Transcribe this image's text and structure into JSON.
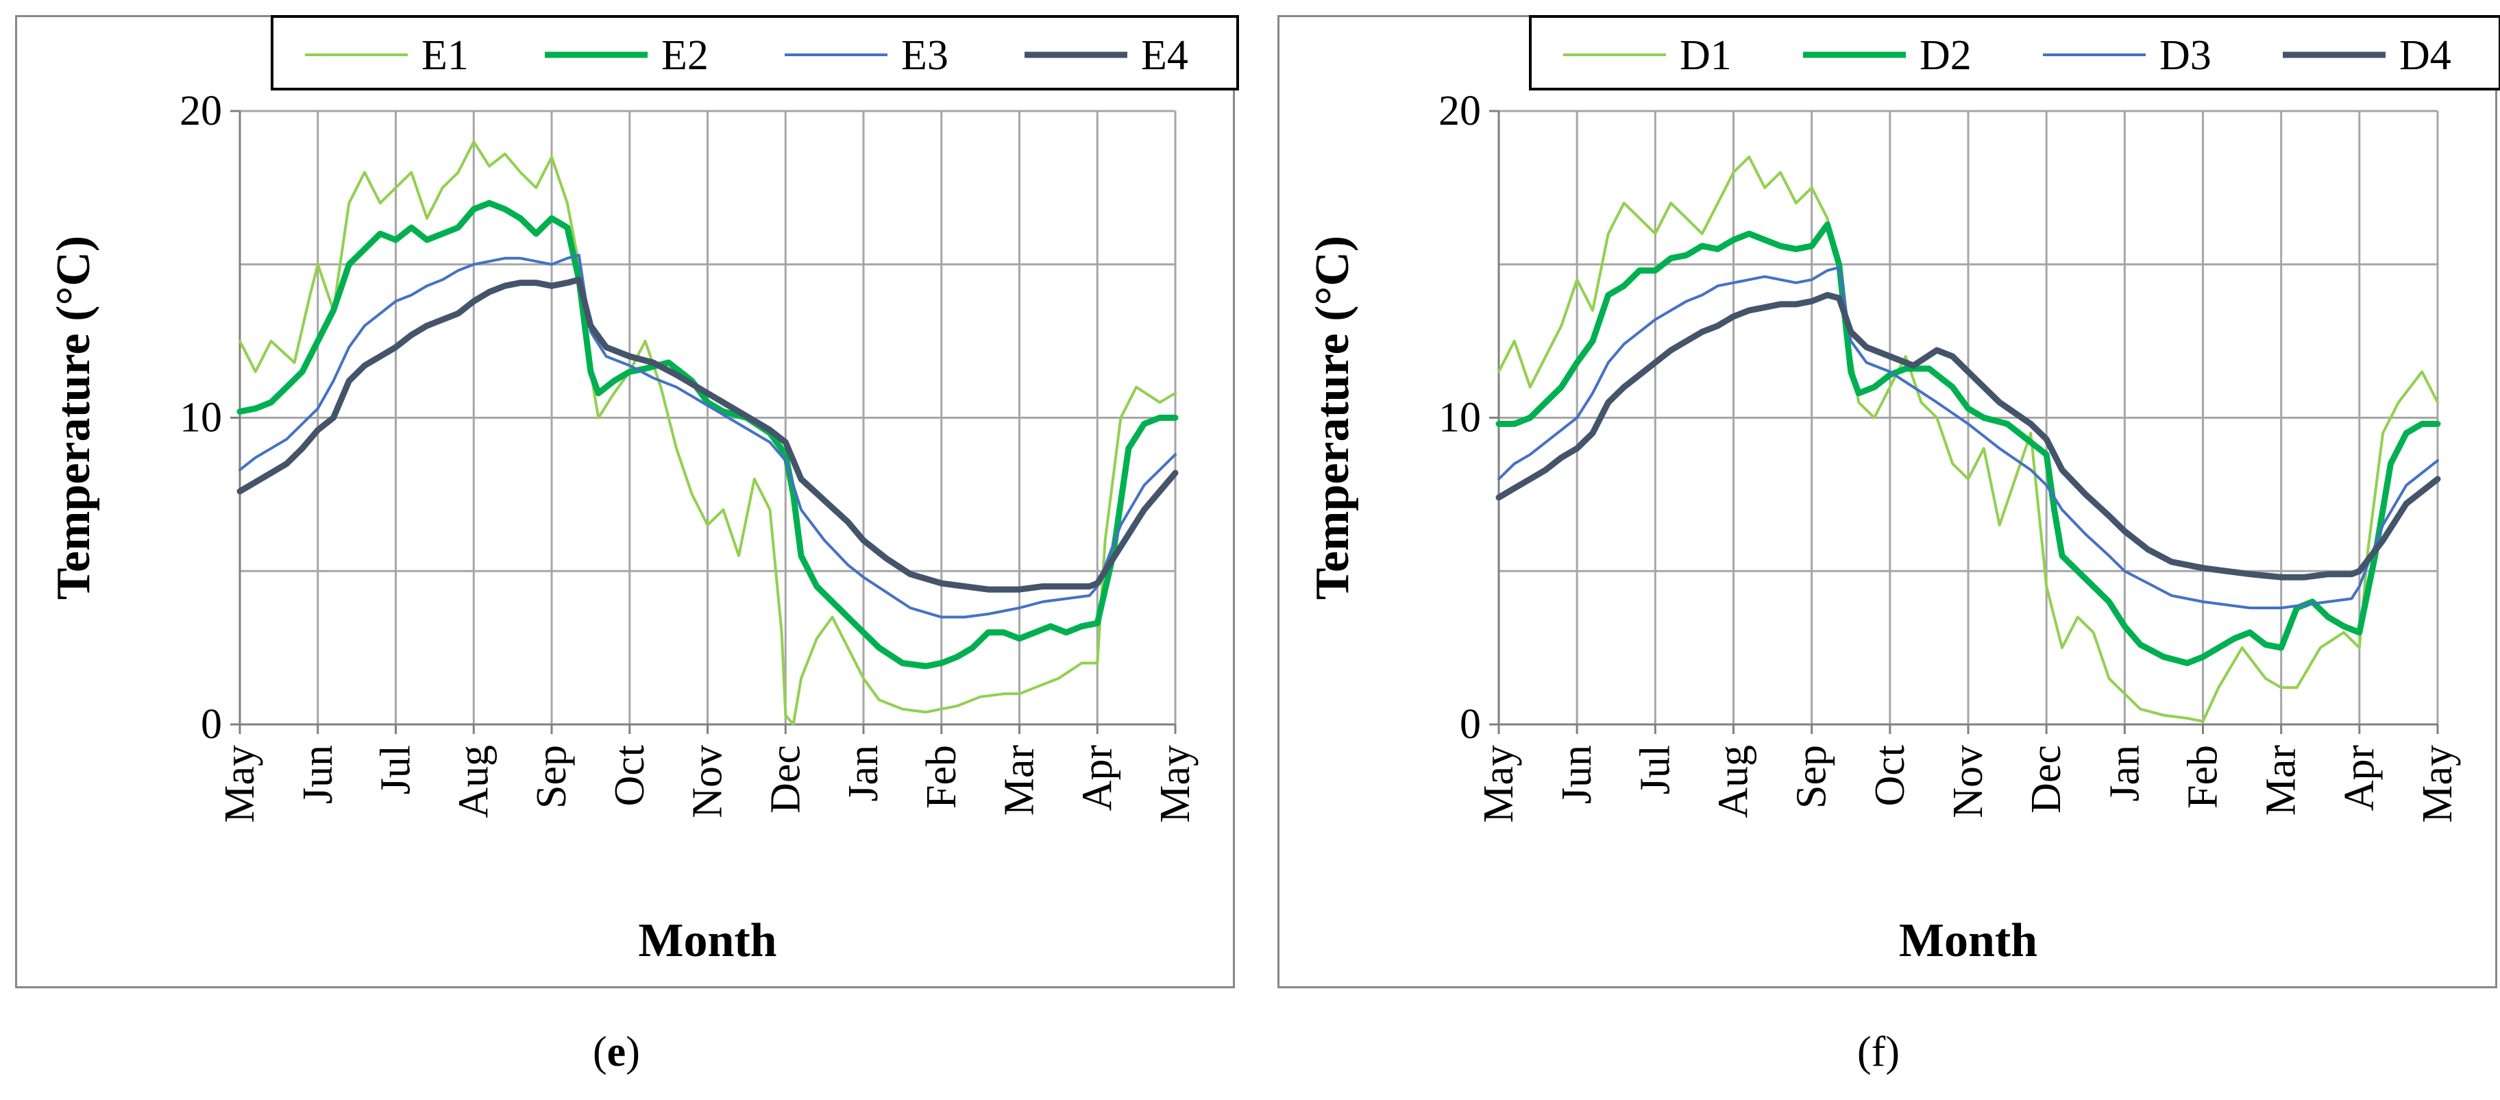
{
  "chart_data": [
    {
      "type": "line",
      "panel": "e",
      "caption_open": "(",
      "caption_letter": "e",
      "caption_close": ")",
      "xlabel": "Month",
      "ylabel": "Temperature (°C)",
      "ylim": [
        0,
        20
      ],
      "yticks": [
        0,
        10,
        20
      ],
      "categories": [
        "May",
        "Jun",
        "Jul",
        "Aug",
        "Sep",
        "Oct",
        "Nov",
        "Dec",
        "Jan",
        "Feb",
        "Mar",
        "Apr",
        "May"
      ],
      "gridlines": [
        5,
        10,
        15,
        20
      ],
      "legend_position": "top",
      "series": [
        {
          "name": "E1",
          "color": "#92d050",
          "width": "thin",
          "x": [
            0,
            0.2,
            0.4,
            0.7,
            0.9,
            1.0,
            1.2,
            1.4,
            1.6,
            1.8,
            2.0,
            2.2,
            2.4,
            2.6,
            2.8,
            3.0,
            3.2,
            3.4,
            3.6,
            3.8,
            4.0,
            4.2,
            4.35,
            4.5,
            4.6,
            4.8,
            5.0,
            5.2,
            5.4,
            5.6,
            5.8,
            6.0,
            6.2,
            6.4,
            6.6,
            6.8,
            6.95,
            7.0,
            7.1,
            7.2,
            7.4,
            7.6,
            7.8,
            8.0,
            8.2,
            8.5,
            8.8,
            9.0,
            9.2,
            9.5,
            9.8,
            10.0,
            10.2,
            10.5,
            10.8,
            11.0,
            11.1,
            11.3,
            11.5,
            11.8,
            12.0
          ],
          "y": [
            12.5,
            11.5,
            12.5,
            11.8,
            14.0,
            15.0,
            13.5,
            17.0,
            18.0,
            17.0,
            17.5,
            18.0,
            16.5,
            17.5,
            18.0,
            19.0,
            18.2,
            18.6,
            18.0,
            17.5,
            18.5,
            17.0,
            15.0,
            11.5,
            10.0,
            10.8,
            11.5,
            12.5,
            11.0,
            9.0,
            7.5,
            6.5,
            7.0,
            5.5,
            8.0,
            7.0,
            3.0,
            0.3,
            0.0,
            1.5,
            2.8,
            3.5,
            2.5,
            1.5,
            0.8,
            0.5,
            0.4,
            0.5,
            0.6,
            0.9,
            1.0,
            1.0,
            1.2,
            1.5,
            2.0,
            2.0,
            6.0,
            10.0,
            11.0,
            10.5,
            10.8
          ]
        },
        {
          "name": "E2",
          "color": "#00b050",
          "width": "thick",
          "x": [
            0,
            0.2,
            0.4,
            0.6,
            0.8,
            1.0,
            1.2,
            1.4,
            1.6,
            1.8,
            2.0,
            2.2,
            2.4,
            2.6,
            2.8,
            3.0,
            3.2,
            3.4,
            3.6,
            3.8,
            4.0,
            4.2,
            4.35,
            4.5,
            4.6,
            4.8,
            5.0,
            5.2,
            5.5,
            5.8,
            6.0,
            6.2,
            6.5,
            6.8,
            7.0,
            7.1,
            7.2,
            7.4,
            7.6,
            7.8,
            8.0,
            8.2,
            8.5,
            8.8,
            9.0,
            9.2,
            9.4,
            9.6,
            9.8,
            10.0,
            10.2,
            10.4,
            10.6,
            10.8,
            11.0,
            11.2,
            11.4,
            11.6,
            11.8,
            12.0
          ],
          "y": [
            10.2,
            10.3,
            10.5,
            11.0,
            11.5,
            12.5,
            13.5,
            15.0,
            15.5,
            16.0,
            15.8,
            16.2,
            15.8,
            16.0,
            16.2,
            16.8,
            17.0,
            16.8,
            16.5,
            16.0,
            16.5,
            16.2,
            14.5,
            11.5,
            10.8,
            11.2,
            11.5,
            11.6,
            11.8,
            11.2,
            10.5,
            10.2,
            10.0,
            9.5,
            8.8,
            7.5,
            5.5,
            4.5,
            4.0,
            3.5,
            3.0,
            2.5,
            2.0,
            1.9,
            2.0,
            2.2,
            2.5,
            3.0,
            3.0,
            2.8,
            3.0,
            3.2,
            3.0,
            3.2,
            3.3,
            5.5,
            9.0,
            9.8,
            10.0,
            10.0
          ]
        },
        {
          "name": "E3",
          "color": "#4472c4",
          "width": "thin",
          "x": [
            0,
            0.2,
            0.4,
            0.6,
            0.8,
            1.0,
            1.2,
            1.4,
            1.6,
            1.8,
            2.0,
            2.2,
            2.4,
            2.6,
            2.8,
            3.0,
            3.2,
            3.4,
            3.6,
            3.8,
            4.0,
            4.2,
            4.35,
            4.5,
            4.7,
            5.0,
            5.3,
            5.6,
            6.0,
            6.4,
            6.8,
            7.0,
            7.2,
            7.5,
            7.8,
            8.0,
            8.3,
            8.6,
            9.0,
            9.3,
            9.6,
            10.0,
            10.3,
            10.6,
            10.9,
            11.0,
            11.3,
            11.6,
            12.0
          ],
          "y": [
            8.3,
            8.7,
            9.0,
            9.3,
            9.8,
            10.3,
            11.2,
            12.3,
            13.0,
            13.4,
            13.8,
            14.0,
            14.3,
            14.5,
            14.8,
            15.0,
            15.1,
            15.2,
            15.2,
            15.1,
            15.0,
            15.2,
            15.3,
            12.8,
            12.0,
            11.7,
            11.3,
            11.0,
            10.4,
            9.8,
            9.2,
            8.6,
            7.0,
            6.0,
            5.2,
            4.8,
            4.3,
            3.8,
            3.5,
            3.5,
            3.6,
            3.8,
            4.0,
            4.1,
            4.2,
            4.5,
            6.5,
            7.8,
            8.8
          ]
        },
        {
          "name": "E4",
          "color": "#44546a",
          "width": "thick",
          "x": [
            0,
            0.2,
            0.4,
            0.6,
            0.8,
            1.0,
            1.2,
            1.4,
            1.6,
            1.8,
            2.0,
            2.2,
            2.4,
            2.6,
            2.8,
            3.0,
            3.2,
            3.4,
            3.6,
            3.8,
            4.0,
            4.2,
            4.35,
            4.5,
            4.7,
            5.0,
            5.3,
            5.6,
            6.0,
            6.4,
            6.8,
            7.0,
            7.2,
            7.5,
            7.8,
            8.0,
            8.3,
            8.6,
            9.0,
            9.3,
            9.6,
            10.0,
            10.3,
            10.6,
            10.9,
            11.0,
            11.3,
            11.6,
            12.0
          ],
          "y": [
            7.6,
            7.9,
            8.2,
            8.5,
            9.0,
            9.6,
            10.0,
            11.2,
            11.7,
            12.0,
            12.3,
            12.7,
            13.0,
            13.2,
            13.4,
            13.8,
            14.1,
            14.3,
            14.4,
            14.4,
            14.3,
            14.4,
            14.5,
            13.0,
            12.3,
            12.0,
            11.8,
            11.4,
            10.8,
            10.2,
            9.6,
            9.2,
            8.0,
            7.3,
            6.6,
            6.0,
            5.4,
            4.9,
            4.6,
            4.5,
            4.4,
            4.4,
            4.5,
            4.5,
            4.5,
            4.6,
            5.8,
            7.0,
            8.2
          ]
        }
      ]
    },
    {
      "type": "line",
      "panel": "f",
      "caption_open": "(",
      "caption_letter": "f",
      "caption_close": ")",
      "xlabel": "Month",
      "ylabel": "Temperature (°C)",
      "ylim": [
        0,
        20
      ],
      "yticks": [
        0,
        10,
        20
      ],
      "categories": [
        "May",
        "Jun",
        "Jul",
        "Aug",
        "Sep",
        "Oct",
        "Nov",
        "Dec",
        "Jan",
        "Feb",
        "Mar",
        "Apr",
        "May"
      ],
      "gridlines": [
        5,
        10,
        15,
        20
      ],
      "legend_position": "top",
      "series": [
        {
          "name": "D1",
          "color": "#92d050",
          "width": "thin",
          "x": [
            0,
            0.2,
            0.4,
            0.6,
            0.8,
            1.0,
            1.2,
            1.4,
            1.6,
            1.8,
            2.0,
            2.2,
            2.4,
            2.6,
            2.8,
            3.0,
            3.2,
            3.4,
            3.6,
            3.8,
            4.0,
            4.2,
            4.35,
            4.5,
            4.6,
            4.8,
            5.0,
            5.2,
            5.4,
            5.6,
            5.8,
            6.0,
            6.2,
            6.4,
            6.6,
            6.8,
            7.0,
            7.2,
            7.4,
            7.6,
            7.8,
            8.0,
            8.2,
            8.5,
            8.8,
            9.0,
            9.2,
            9.5,
            9.8,
            10.0,
            10.2,
            10.5,
            10.8,
            11.0,
            11.1,
            11.3,
            11.5,
            11.8,
            12.0
          ],
          "y": [
            11.5,
            12.5,
            11.0,
            12.0,
            13.0,
            14.5,
            13.5,
            16.0,
            17.0,
            16.5,
            16.0,
            17.0,
            16.5,
            16.0,
            17.0,
            18.0,
            18.5,
            17.5,
            18.0,
            17.0,
            17.5,
            16.5,
            15.0,
            12.0,
            10.5,
            10.0,
            11.0,
            12.0,
            10.5,
            10.0,
            8.5,
            8.0,
            9.0,
            6.5,
            8.0,
            9.5,
            4.5,
            2.5,
            3.5,
            3.0,
            1.5,
            1.0,
            0.5,
            0.3,
            0.2,
            0.1,
            1.2,
            2.5,
            1.5,
            1.2,
            1.2,
            2.5,
            3.0,
            2.5,
            5.5,
            9.5,
            10.5,
            11.5,
            10.5
          ]
        },
        {
          "name": "D2",
          "color": "#00b050",
          "width": "thick",
          "x": [
            0,
            0.2,
            0.4,
            0.6,
            0.8,
            1.0,
            1.2,
            1.4,
            1.6,
            1.8,
            2.0,
            2.2,
            2.4,
            2.6,
            2.8,
            3.0,
            3.2,
            3.4,
            3.6,
            3.8,
            4.0,
            4.2,
            4.35,
            4.5,
            4.6,
            4.8,
            5.0,
            5.2,
            5.5,
            5.8,
            6.0,
            6.2,
            6.5,
            6.8,
            7.0,
            7.1,
            7.2,
            7.4,
            7.6,
            7.8,
            8.0,
            8.2,
            8.5,
            8.8,
            9.0,
            9.2,
            9.4,
            9.6,
            9.8,
            10.0,
            10.2,
            10.4,
            10.6,
            10.8,
            11.0,
            11.2,
            11.4,
            11.6,
            11.8,
            12.0
          ],
          "y": [
            9.8,
            9.8,
            10.0,
            10.5,
            11.0,
            11.8,
            12.5,
            14.0,
            14.3,
            14.8,
            14.8,
            15.2,
            15.3,
            15.6,
            15.5,
            15.8,
            16.0,
            15.8,
            15.6,
            15.5,
            15.6,
            16.3,
            15.0,
            11.5,
            10.8,
            11.0,
            11.4,
            11.6,
            11.6,
            11.0,
            10.3,
            10.0,
            9.8,
            9.2,
            8.8,
            7.0,
            5.5,
            5.0,
            4.5,
            4.0,
            3.2,
            2.6,
            2.2,
            2.0,
            2.2,
            2.5,
            2.8,
            3.0,
            2.6,
            2.5,
            3.8,
            4.0,
            3.5,
            3.2,
            3.0,
            5.5,
            8.5,
            9.5,
            9.8,
            9.8
          ]
        },
        {
          "name": "D3",
          "color": "#4472c4",
          "width": "thin",
          "x": [
            0,
            0.2,
            0.4,
            0.6,
            0.8,
            1.0,
            1.2,
            1.4,
            1.6,
            1.8,
            2.0,
            2.2,
            2.4,
            2.6,
            2.8,
            3.0,
            3.2,
            3.4,
            3.6,
            3.8,
            4.0,
            4.2,
            4.35,
            4.5,
            4.7,
            5.0,
            5.3,
            5.6,
            6.0,
            6.4,
            6.8,
            7.0,
            7.2,
            7.5,
            7.8,
            8.0,
            8.3,
            8.6,
            9.0,
            9.3,
            9.6,
            10.0,
            10.3,
            10.6,
            10.9,
            11.0,
            11.3,
            11.6,
            12.0
          ],
          "y": [
            8.0,
            8.5,
            8.8,
            9.2,
            9.6,
            10.0,
            10.8,
            11.8,
            12.4,
            12.8,
            13.2,
            13.5,
            13.8,
            14.0,
            14.3,
            14.4,
            14.5,
            14.6,
            14.5,
            14.4,
            14.5,
            14.8,
            14.9,
            12.5,
            11.8,
            11.5,
            11.0,
            10.5,
            9.8,
            9.0,
            8.3,
            7.8,
            7.0,
            6.2,
            5.5,
            5.0,
            4.6,
            4.2,
            4.0,
            3.9,
            3.8,
            3.8,
            3.9,
            4.0,
            4.1,
            4.5,
            6.5,
            7.8,
            8.6
          ]
        },
        {
          "name": "D4",
          "color": "#44546a",
          "width": "thick",
          "x": [
            0,
            0.2,
            0.4,
            0.6,
            0.8,
            1.0,
            1.2,
            1.4,
            1.6,
            1.8,
            2.0,
            2.2,
            2.4,
            2.6,
            2.8,
            3.0,
            3.2,
            3.4,
            3.6,
            3.8,
            4.0,
            4.2,
            4.35,
            4.5,
            4.7,
            5.0,
            5.3,
            5.6,
            5.8,
            6.0,
            6.4,
            6.8,
            7.0,
            7.2,
            7.5,
            7.8,
            8.0,
            8.3,
            8.6,
            9.0,
            9.3,
            9.6,
            10.0,
            10.3,
            10.6,
            10.9,
            11.0,
            11.3,
            11.6,
            12.0
          ],
          "y": [
            7.4,
            7.7,
            8.0,
            8.3,
            8.7,
            9.0,
            9.5,
            10.5,
            11.0,
            11.4,
            11.8,
            12.2,
            12.5,
            12.8,
            13.0,
            13.3,
            13.5,
            13.6,
            13.7,
            13.7,
            13.8,
            14.0,
            13.9,
            12.8,
            12.3,
            12.0,
            11.7,
            12.2,
            12.0,
            11.5,
            10.5,
            9.8,
            9.3,
            8.3,
            7.5,
            6.8,
            6.3,
            5.7,
            5.3,
            5.1,
            5.0,
            4.9,
            4.8,
            4.8,
            4.9,
            4.9,
            5.0,
            6.0,
            7.2,
            8.0
          ]
        }
      ]
    }
  ]
}
